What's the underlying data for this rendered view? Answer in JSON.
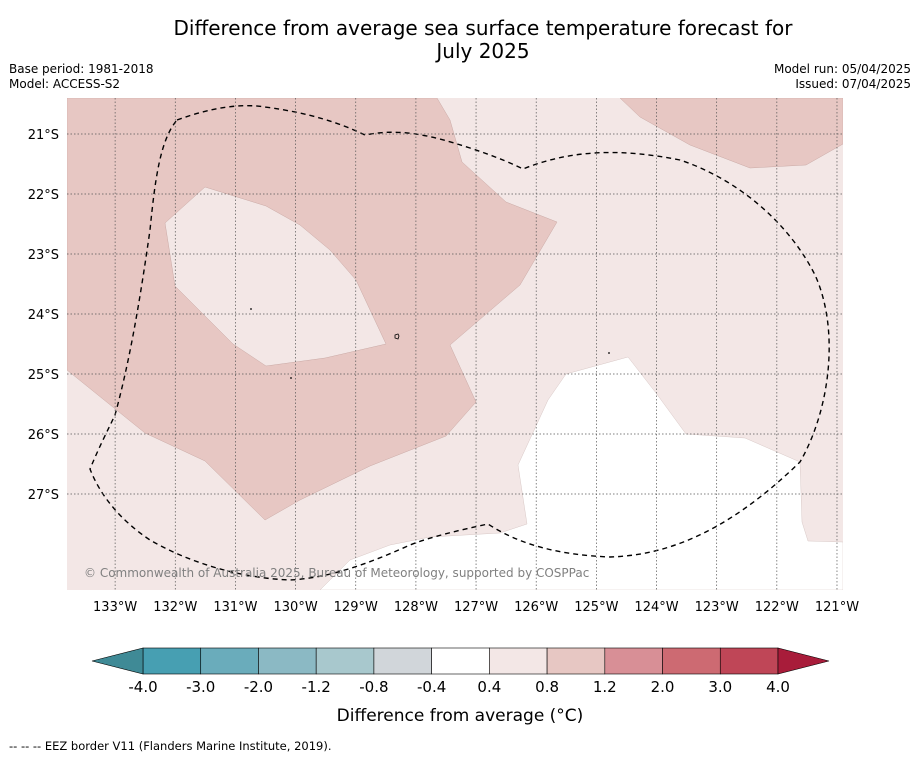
{
  "chart_data": {
    "type": "heatmap",
    "title": "Difference from average sea surface temperature forecast for\nJuly 2025",
    "title_lines": [
      "Difference from average sea surface temperature forecast for",
      "July 2025"
    ],
    "meta_left": [
      "Base period: 1981-2018",
      "Model: ACCESS-S2"
    ],
    "meta_right": [
      "Model run: 05/04/2025",
      "Issued: 07/04/2025"
    ],
    "x_ticks": [
      "133°W",
      "132°W",
      "131°W",
      "130°W",
      "129°W",
      "128°W",
      "127°W",
      "126°W",
      "125°W",
      "124°W",
      "123°W",
      "122°W",
      "121°W"
    ],
    "x_tick_values": [
      -133,
      -132,
      -131,
      -130,
      -129,
      -128,
      -127,
      -126,
      -125,
      -124,
      -123,
      -122,
      -121
    ],
    "y_ticks": [
      "21°S",
      "22°S",
      "23°S",
      "24°S",
      "25°S",
      "26°S",
      "27°S"
    ],
    "y_tick_values": [
      -21,
      -22,
      -23,
      -24,
      -25,
      -26,
      -27
    ],
    "xlim": [
      -133.8,
      -120.9
    ],
    "ylim": [
      -28.6,
      -20.4
    ],
    "copyright": "© Commonwealth of Australia 2025, Bureau of Meteorology, supported by COSPPac",
    "colorbar": {
      "label": "Difference from average (°C)",
      "boundaries": [
        "-4.0",
        "-3.0",
        "-2.0",
        "-1.2",
        "-0.8",
        "-0.4",
        "0.4",
        "0.8",
        "1.2",
        "2.0",
        "3.0",
        "4.0"
      ],
      "colors": [
        "#479fb2",
        "#6aacbb",
        "#8bb9c4",
        "#a8c8cd",
        "#d1d6da",
        "#ffffff",
        "#f3e7e6",
        "#e7c7c3",
        "#d88f96",
        "#cd6a72",
        "#bf4657"
      ],
      "extend_low_color": "#3f8a96",
      "extend_high_color": "#a81c3a"
    },
    "regions": [
      {
        "category": "0.8 to 1.2",
        "color": "#e7c7c3"
      },
      {
        "category": "0.4 to 0.8",
        "color": "#f3e7e6"
      },
      {
        "category": "-0.4 to 0.4",
        "color": "#ffffff"
      }
    ],
    "footer": "--  --  -- EEZ border V11 (Flanders Marine Institute, 2019)."
  }
}
